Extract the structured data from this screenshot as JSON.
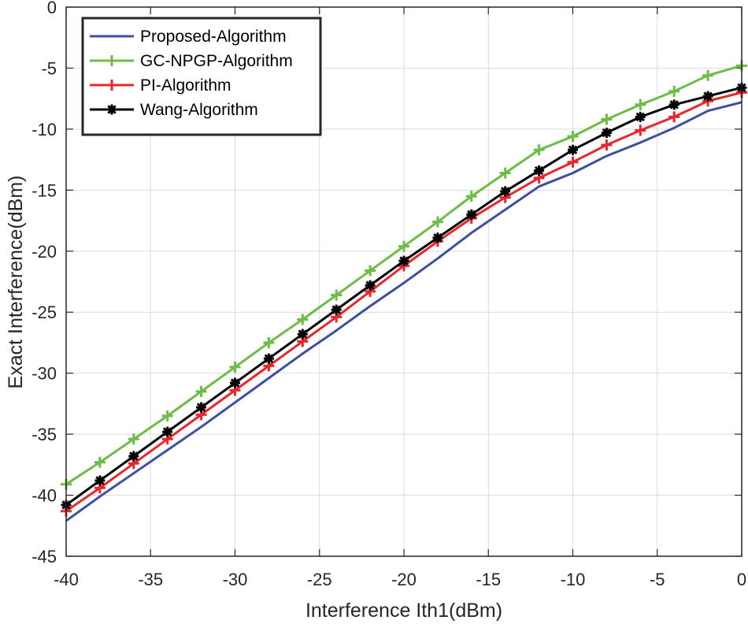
{
  "chart_data": {
    "type": "line",
    "xlabel": "Interference Ith1(dBm)",
    "ylabel": "Exact Interference(dBm)",
    "xlim": [
      -40,
      0
    ],
    "ylim": [
      -45,
      0
    ],
    "xticks": [
      -40,
      -35,
      -30,
      -25,
      -20,
      -15,
      -10,
      -5,
      0
    ],
    "yticks": [
      0,
      -5,
      -10,
      -15,
      -20,
      -25,
      -30,
      -35,
      -40,
      -45
    ],
    "grid": true,
    "legend_position": "top-left",
    "x": [
      -40,
      -38,
      -36,
      -34,
      -32,
      -30,
      -28,
      -26,
      -24,
      -22,
      -20,
      -18,
      -16,
      -14,
      -12,
      -10,
      -8,
      -6,
      -4,
      -2,
      0
    ],
    "series": [
      {
        "name": "Proposed-Algorithm",
        "color": "#3c4fa0",
        "marker": "none",
        "values": [
          -42.1,
          -40.1,
          -38.2,
          -36.3,
          -34.4,
          -32.4,
          -30.4,
          -28.4,
          -26.5,
          -24.5,
          -22.6,
          -20.6,
          -18.5,
          -16.6,
          -14.7,
          -13.6,
          -12.2,
          -11.1,
          -9.9,
          -8.5,
          -7.8
        ]
      },
      {
        "name": "GC-NPGP-Algorithm",
        "color": "#6cbd45",
        "marker": "plus",
        "values": [
          -39.1,
          -37.3,
          -35.4,
          -33.5,
          -31.5,
          -29.5,
          -27.5,
          -25.6,
          -23.6,
          -21.6,
          -19.6,
          -17.6,
          -15.5,
          -13.6,
          -11.7,
          -10.6,
          -9.2,
          -8.0,
          -6.9,
          -5.6,
          -4.8
        ]
      },
      {
        "name": "PI-Algorithm",
        "color": "#e8262b",
        "marker": "plus",
        "values": [
          -41.3,
          -39.4,
          -37.4,
          -35.4,
          -33.4,
          -31.4,
          -29.4,
          -27.4,
          -25.4,
          -23.3,
          -21.2,
          -19.2,
          -17.3,
          -15.6,
          -14.0,
          -12.7,
          -11.3,
          -10.1,
          -9.0,
          -7.7,
          -7.0
        ]
      },
      {
        "name": "Wang-Algorithm",
        "color": "#000000",
        "marker": "star",
        "values": [
          -40.8,
          -38.8,
          -36.8,
          -34.8,
          -32.8,
          -30.8,
          -28.8,
          -26.8,
          -24.8,
          -22.8,
          -20.8,
          -18.9,
          -17.0,
          -15.1,
          -13.4,
          -11.7,
          -10.3,
          -9.0,
          -8.0,
          -7.3,
          -6.6
        ]
      }
    ]
  }
}
